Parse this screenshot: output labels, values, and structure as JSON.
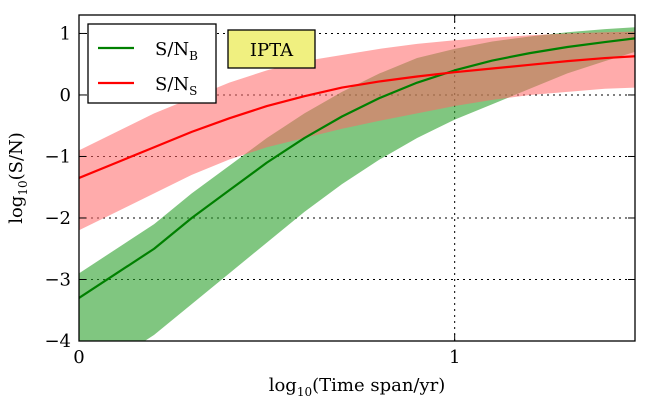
{
  "chart_data": {
    "type": "area",
    "title": "",
    "xlabel": "log10(Time span/yr)",
    "xlabel_main": "log",
    "xlabel_sub": "10",
    "xlabel_rest": "(Time span/yr)",
    "ylabel": "log10(S/N)",
    "ylabel_main": "log",
    "ylabel_sub": "10",
    "ylabel_rest": "(S/N)",
    "xlim": [
      0,
      1.48
    ],
    "ylim": [
      -4,
      1.3
    ],
    "x_ticks": [
      0,
      1
    ],
    "x_tick_labels": [
      "0",
      "1"
    ],
    "y_ticks": [
      -4,
      -3,
      -2,
      -1,
      0,
      1
    ],
    "y_tick_labels": [
      "−4",
      "−3",
      "−2",
      "−1",
      "0",
      "1"
    ],
    "grid": "dotted at ticks",
    "legend_placement": "top-left",
    "annotation": "IPTA",
    "series": [
      {
        "name": "S/N_B",
        "label_main": "S/N",
        "label_sub": "B",
        "color": "#008000",
        "band_color": "#2ca02c",
        "x": [
          0,
          0.1,
          0.2,
          0.3,
          0.4,
          0.5,
          0.6,
          0.7,
          0.8,
          0.9,
          1.0,
          1.1,
          1.2,
          1.3,
          1.4,
          1.48
        ],
        "y": [
          -3.3,
          -2.9,
          -2.5,
          -2.0,
          -1.55,
          -1.1,
          -0.7,
          -0.35,
          -0.05,
          0.2,
          0.4,
          0.56,
          0.68,
          0.78,
          0.86,
          0.92
        ],
        "lower": [
          -4.6,
          -4.3,
          -3.9,
          -3.4,
          -2.9,
          -2.4,
          -1.9,
          -1.45,
          -1.05,
          -0.7,
          -0.4,
          -0.15,
          0.1,
          0.35,
          0.55,
          0.7
        ],
        "upper": [
          -2.9,
          -2.5,
          -2.1,
          -1.6,
          -1.15,
          -0.7,
          -0.3,
          0.05,
          0.35,
          0.6,
          0.75,
          0.87,
          0.95,
          1.02,
          1.07,
          1.1
        ]
      },
      {
        "name": "S/N_S",
        "label_main": "S/N",
        "label_sub": "S",
        "color": "#ff0000",
        "band_color": "#ff6666",
        "x": [
          0,
          0.1,
          0.2,
          0.3,
          0.4,
          0.5,
          0.6,
          0.7,
          0.8,
          0.9,
          1.0,
          1.1,
          1.2,
          1.3,
          1.4,
          1.48
        ],
        "y": [
          -1.35,
          -1.1,
          -0.85,
          -0.6,
          -0.38,
          -0.18,
          -0.02,
          0.12,
          0.22,
          0.3,
          0.37,
          0.43,
          0.49,
          0.55,
          0.6,
          0.63
        ],
        "lower": [
          -2.2,
          -1.9,
          -1.6,
          -1.3,
          -1.05,
          -0.85,
          -0.7,
          -0.55,
          -0.42,
          -0.3,
          -0.18,
          -0.08,
          0.0,
          0.05,
          0.1,
          0.12
        ],
        "upper": [
          -0.9,
          -0.6,
          -0.3,
          -0.05,
          0.2,
          0.4,
          0.55,
          0.65,
          0.75,
          0.83,
          0.89,
          0.93,
          0.97,
          1.0,
          1.02,
          1.03
        ]
      }
    ]
  }
}
